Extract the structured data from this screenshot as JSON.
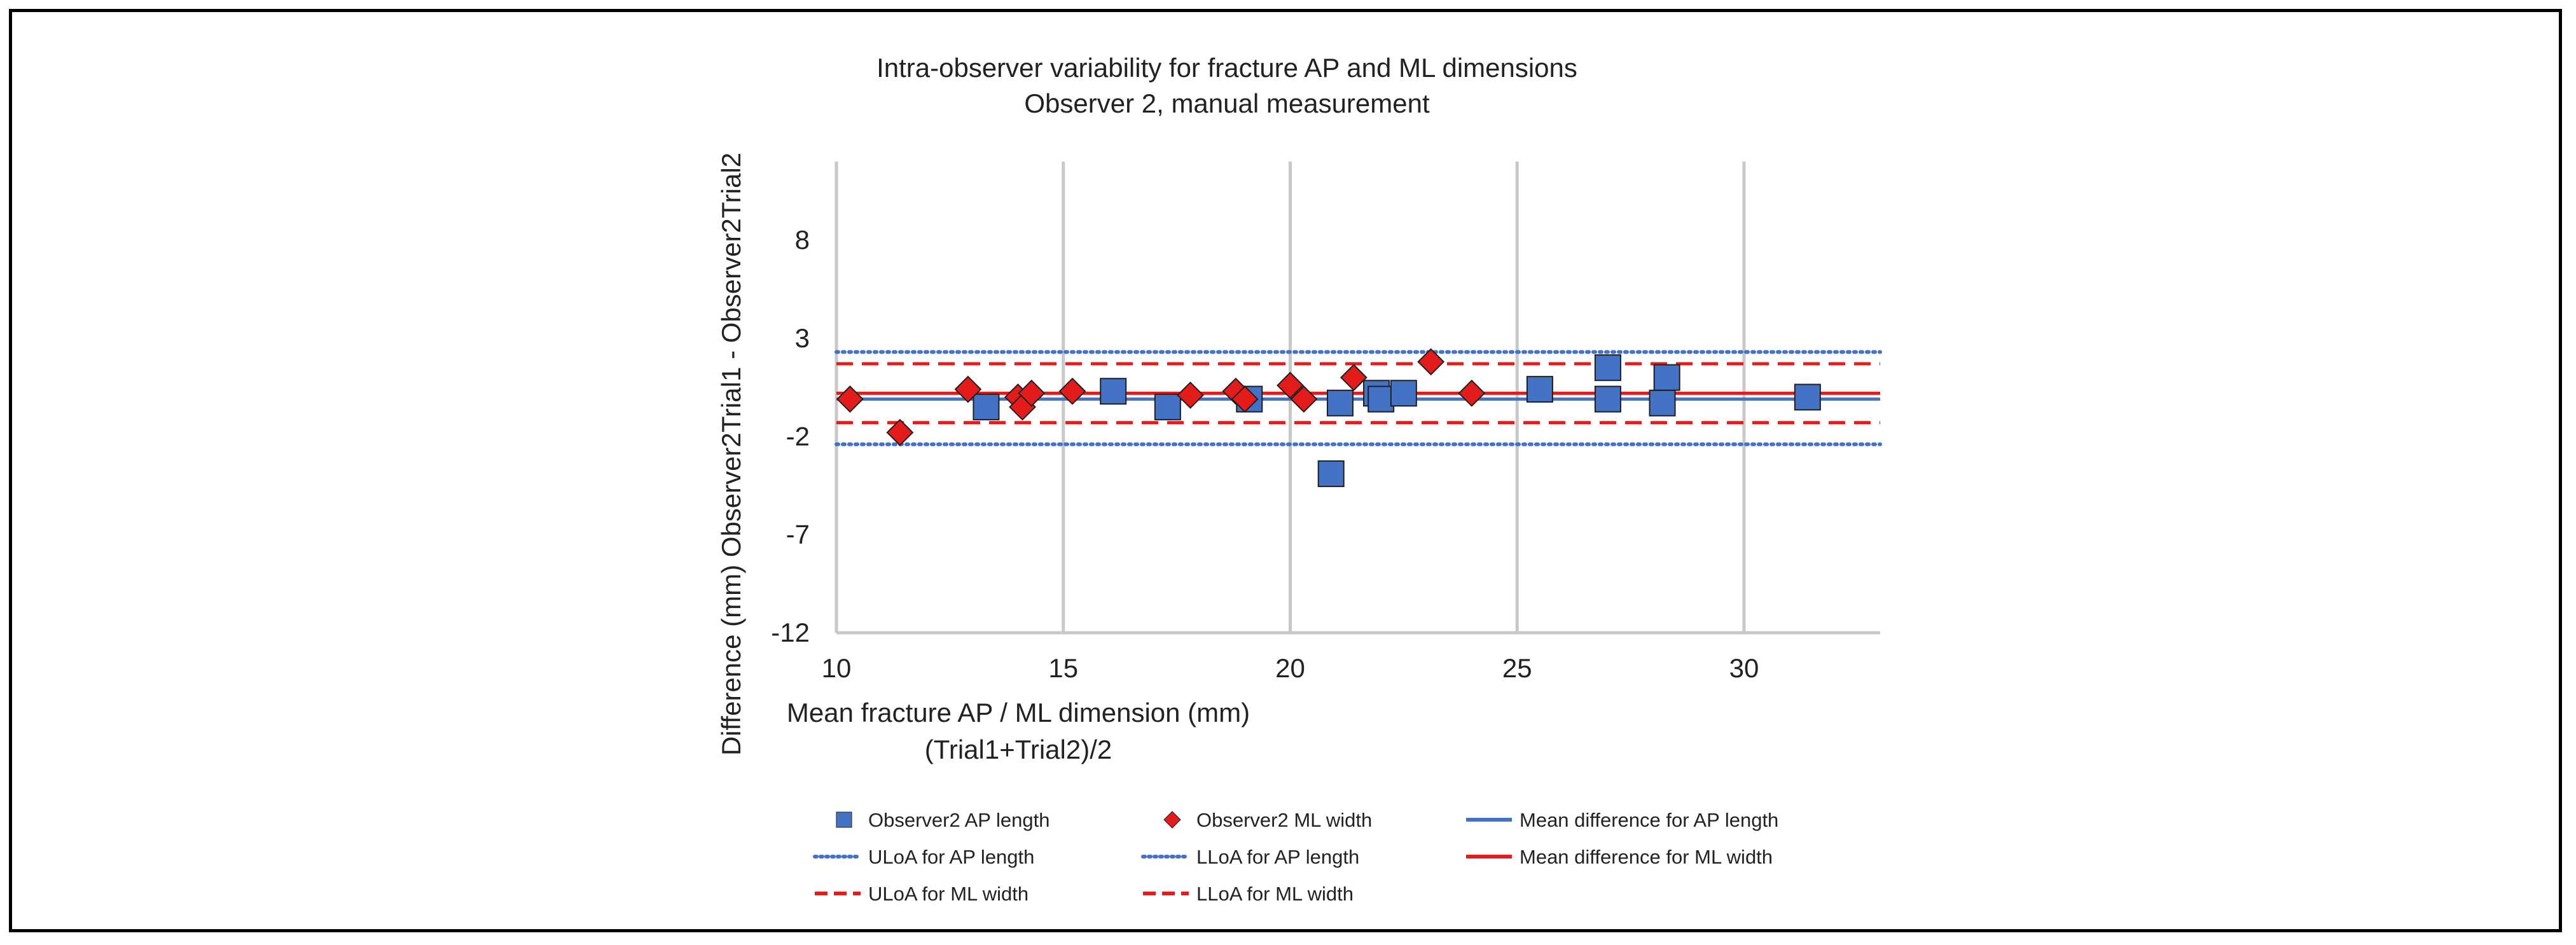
{
  "chart_data": {
    "type": "scatter",
    "title_lines": [
      "Intra-observer variability for fracture AP and ML dimensions",
      "Observer 2, manual measurement"
    ],
    "xlabel_lines": [
      "Mean fracture AP / ML dimension (mm)",
      "(Trial1+Trial2)/2"
    ],
    "ylabel": "Difference (mm) Observer2Trial1 - Observer2Trial2",
    "xlim": [
      10,
      33
    ],
    "ylim": [
      -12,
      12
    ],
    "xticks": [
      "10",
      "15",
      "20",
      "25",
      "30"
    ],
    "xtick_values": [
      10,
      15,
      20,
      25,
      30
    ],
    "yticks": [
      "8",
      "3",
      "-2",
      "-7",
      "-12"
    ],
    "ytick_values": [
      8,
      3,
      -2,
      -7,
      -12
    ],
    "grid": "vertical",
    "series": [
      {
        "name": "Observer2 AP length",
        "marker": "square",
        "color": "#4472c4",
        "x": [
          13.3,
          16.1,
          17.3,
          19.1,
          20.9,
          21.1,
          21.9,
          22.0,
          22.5,
          25.5,
          27.0,
          27.0,
          28.2,
          28.3,
          31.4
        ],
        "y": [
          -0.5,
          0.3,
          -0.5,
          -0.1,
          -3.9,
          -0.3,
          0.2,
          -0.1,
          0.2,
          0.4,
          -0.1,
          1.5,
          -0.3,
          1.0,
          0.0
        ]
      },
      {
        "name": "Observer2 ML width",
        "marker": "diamond",
        "color": "#e41b1b",
        "x": [
          10.3,
          11.4,
          12.9,
          14.0,
          14.1,
          14.3,
          15.2,
          17.8,
          18.8,
          19.0,
          20.0,
          20.3,
          21.4,
          23.1,
          24.0
        ],
        "y": [
          -0.1,
          -1.8,
          0.4,
          0.0,
          -0.5,
          0.2,
          0.3,
          0.1,
          0.3,
          -0.1,
          0.6,
          -0.1,
          1.0,
          1.8,
          0.2
        ]
      }
    ],
    "reference_lines": [
      {
        "name": "Mean difference for AP length",
        "y": -0.1,
        "style": "solid",
        "color": "#4472c4"
      },
      {
        "name": "ULoA for AP length",
        "y": 2.3,
        "style": "dotted",
        "color": "#4472c4"
      },
      {
        "name": "LLoA for AP length",
        "y": -2.4,
        "style": "dotted",
        "color": "#4472c4"
      },
      {
        "name": "Mean difference for ML width",
        "y": 0.2,
        "style": "solid",
        "color": "#e41b1b"
      },
      {
        "name": "ULoA for ML width",
        "y": 1.7,
        "style": "dashed",
        "color": "#e41b1b"
      },
      {
        "name": "LLoA for ML width",
        "y": -1.3,
        "style": "dashed",
        "color": "#e41b1b"
      }
    ],
    "legend": {
      "placement": "bottom",
      "entries": [
        {
          "label": "Observer2 AP length",
          "symbol": "square",
          "color": "#4472c4"
        },
        {
          "label": "Observer2 ML width",
          "symbol": "diamond",
          "color": "#e41b1b"
        },
        {
          "label": "Mean difference for AP length",
          "symbol": "solid",
          "color": "#4472c4"
        },
        {
          "label": "ULoA for AP length",
          "symbol": "dotted",
          "color": "#4472c4"
        },
        {
          "label": "LLoA for AP length",
          "symbol": "dotted",
          "color": "#4472c4"
        },
        {
          "label": "Mean difference for ML width",
          "symbol": "solid",
          "color": "#e41b1b"
        },
        {
          "label": "ULoA for ML width",
          "symbol": "dashed",
          "color": "#e41b1b"
        },
        {
          "label": "LLoA for ML width",
          "symbol": "dashed",
          "color": "#e41b1b"
        }
      ]
    }
  }
}
